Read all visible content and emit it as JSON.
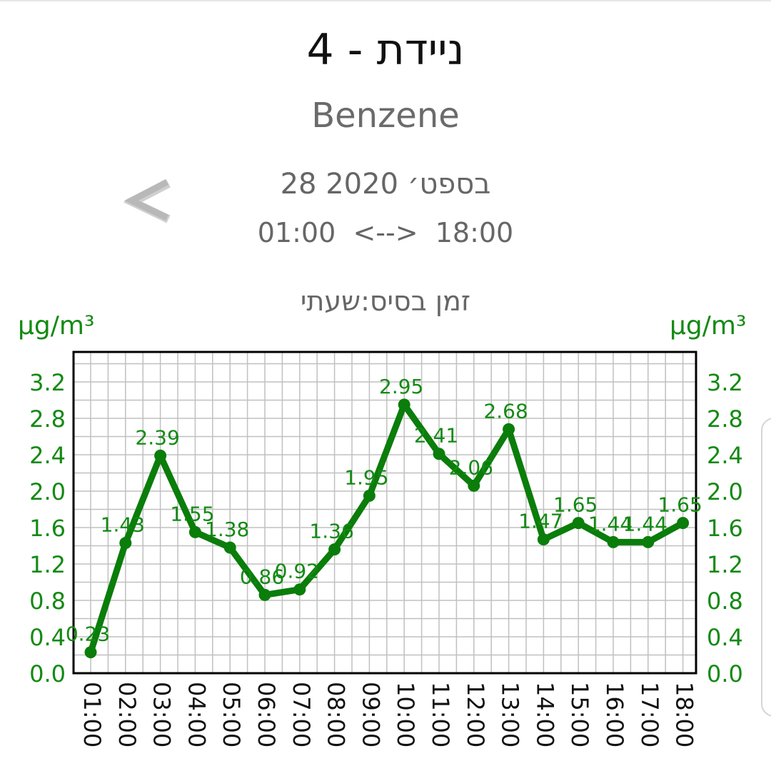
{
  "header": {
    "station_title": "ניידת - 4",
    "pollutant": "Benzene",
    "date": "28 בספט׳ 2020",
    "time_start": "01:00",
    "time_arrow": "<-->",
    "time_end": "18:00",
    "base_time": "זמן בסיס:שעתי",
    "prev_icon": "chevron-left-icon"
  },
  "colors": {
    "series": "#0a7d0a",
    "axis_text": "#138a13",
    "grid": "#c0c0c0",
    "frame": "#000000"
  },
  "chart_data": {
    "type": "line",
    "title": "",
    "xlabel": "",
    "ylabel_left": "µg/m³",
    "ylabel_right": "µg/m³",
    "categories": [
      "01:00",
      "02:00",
      "03:00",
      "04:00",
      "05:00",
      "06:00",
      "07:00",
      "08:00",
      "09:00",
      "10:00",
      "11:00",
      "12:00",
      "13:00",
      "14:00",
      "15:00",
      "16:00",
      "17:00",
      "18:00"
    ],
    "series": [
      {
        "values": [
          0.23,
          1.43,
          2.39,
          1.55,
          1.38,
          0.86,
          0.92,
          1.36,
          1.95,
          2.95,
          2.41,
          2.06,
          2.68,
          1.47,
          1.65,
          1.44,
          1.44,
          1.65
        ],
        "labels": [
          "0.23",
          "1.43",
          "2.39",
          "1.55",
          "1.38",
          "0.86",
          "0.92",
          "1.36",
          "1.95",
          "2.95",
          "2.41",
          "2.06",
          "2.68",
          "1.47",
          "1.65",
          "1.44",
          "1.44",
          "1.65"
        ]
      }
    ],
    "yticks": [
      "0.0",
      "0.4",
      "0.8",
      "1.2",
      "1.6",
      "2.0",
      "2.4",
      "2.8",
      "3.2"
    ],
    "ylim": [
      0,
      3.5
    ],
    "grid": true,
    "legend": "none"
  }
}
